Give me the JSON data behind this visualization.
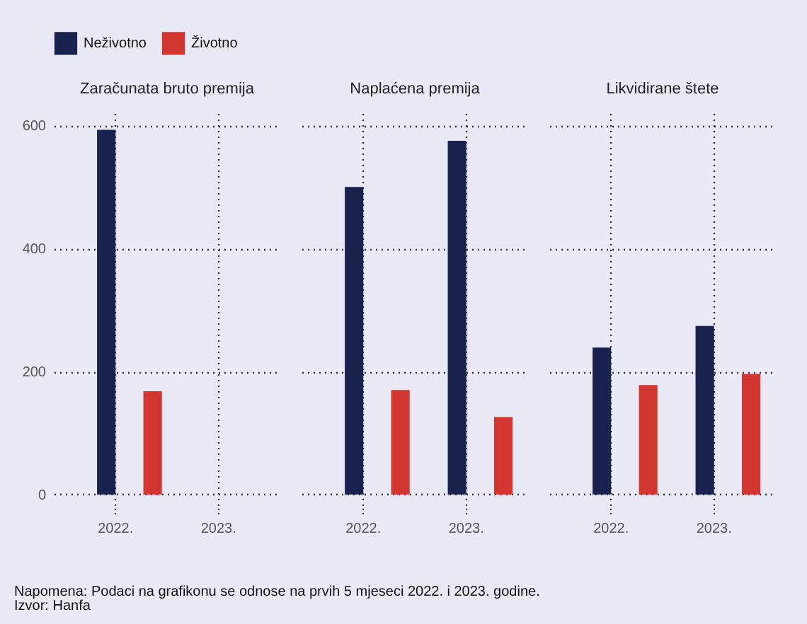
{
  "chart_data": [
    {
      "type": "bar",
      "title": "Zaračunata bruto premija",
      "categories": [
        "2022.",
        "2023."
      ],
      "series": [
        {
          "name": "Neživotno",
          "color": "#1a2350",
          "values": [
            593,
            null
          ]
        },
        {
          "name": "Životno",
          "color": "#d33530",
          "values": [
            168,
            null
          ]
        }
      ],
      "ylim": [
        -15,
        620
      ],
      "yticks": [
        0,
        200,
        400,
        600
      ],
      "grid": true,
      "legend": "top",
      "annotations": [
        "Napomena: Podaci na grafikonu se odnose na prvih 5 mjeseci 2022. i 2023. godine.",
        "Izvor: Hanfa"
      ]
    },
    {
      "type": "bar",
      "title": "Naplaćena premija",
      "categories": [
        "2022.",
        "2023."
      ],
      "series": [
        {
          "name": "Neživotno",
          "color": "#1a2350",
          "values": [
            500,
            575
          ]
        },
        {
          "name": "Životno",
          "color": "#d33530",
          "values": [
            170,
            126
          ]
        }
      ],
      "ylim": [
        -15,
        620
      ],
      "yticks": [
        0,
        200,
        400,
        600
      ],
      "grid": true,
      "tick_labels": "x"
    },
    {
      "type": "bar",
      "title": "Likvidirane štete",
      "categories": [
        "2022.",
        "2023."
      ],
      "series": [
        {
          "name": "Neživotno",
          "color": "#1a2350",
          "values": [
            239,
            274
          ]
        },
        {
          "name": "Životno",
          "color": "#d33530",
          "values": [
            178,
            196
          ]
        }
      ],
      "ylim": [
        -15,
        620
      ],
      "yticks": [
        0,
        200,
        400,
        600
      ],
      "grid": true,
      "tick_labels": "x"
    }
  ]
}
